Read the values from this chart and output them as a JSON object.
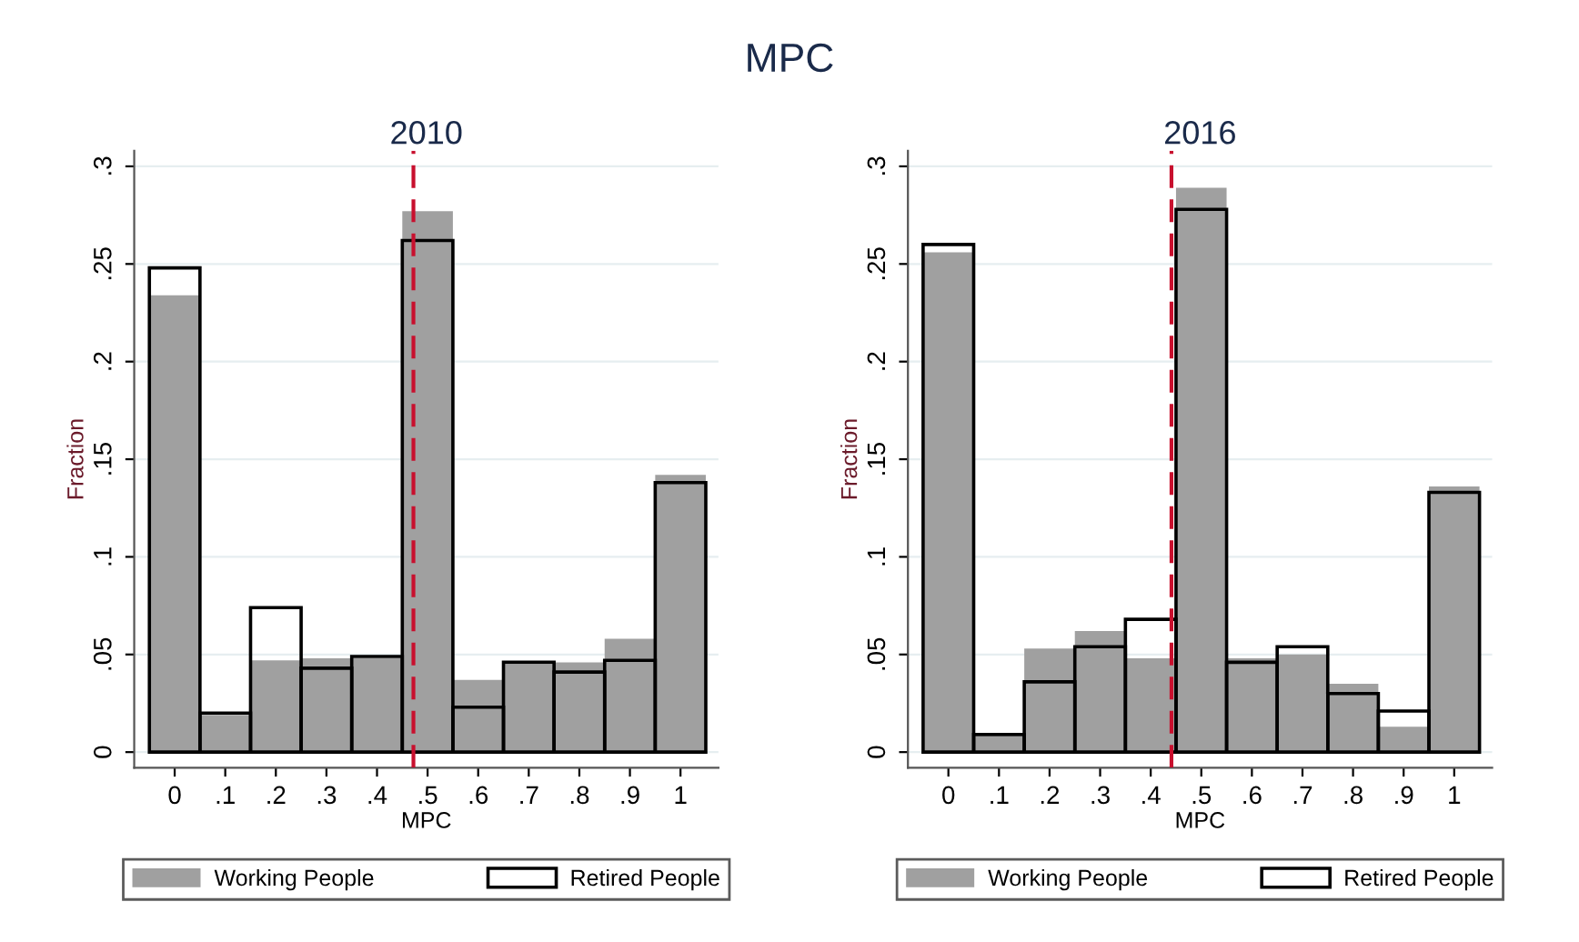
{
  "chart_data": [
    {
      "type": "histogram",
      "title": "2010",
      "xlabel": "MPC",
      "ylabel": "Fraction",
      "annotations": [
        "MPC"
      ],
      "bins": [
        -0.05,
        0.05,
        0.15,
        0.25,
        0.35,
        0.45,
        0.55,
        0.65,
        0.75,
        0.85,
        0.95,
        1.05
      ],
      "series": [
        {
          "name": "Working People",
          "color": "#a0a0a0",
          "values": [
            0.234,
            0.019,
            0.047,
            0.048,
            0.048,
            0.277,
            0.037,
            0.045,
            0.046,
            0.058,
            0.142
          ]
        },
        {
          "name": "Retired People",
          "color": "#000000",
          "values": [
            0.248,
            0.02,
            0.074,
            0.043,
            0.049,
            0.262,
            0.023,
            0.046,
            0.041,
            0.047,
            0.138
          ]
        }
      ],
      "xlim": [
        -0.08,
        1.075
      ],
      "ylim": [
        -0.008,
        0.308
      ],
      "xticks": [
        0,
        {
          "value": 0.1,
          "label": ".1"
        },
        {
          "value": 0.2,
          "label": ".2"
        },
        {
          "value": 0.3,
          "label": ".3"
        },
        {
          "value": 0.4,
          "label": ".4"
        },
        {
          "value": 0.5,
          "label": ".5"
        },
        {
          "value": 0.6,
          "label": ".6"
        },
        {
          "value": 0.7,
          "label": ".7"
        },
        {
          "value": 0.8,
          "label": ".8"
        },
        {
          "value": 0.9,
          "label": ".9"
        },
        1
      ],
      "yticks": [
        0,
        {
          "value": 0.05,
          "label": ".05"
        },
        {
          "value": 0.1,
          "label": ".1"
        },
        {
          "value": 0.15,
          "label": ".15"
        },
        {
          "value": 0.2,
          "label": ".2"
        },
        {
          "value": 0.25,
          "label": ".25"
        },
        {
          "value": 0.3,
          "label": ".3"
        }
      ],
      "ref_lines": [
        {
          "axis": "x",
          "value": 0.472,
          "color": "#c8102e",
          "line_style": "dashed"
        }
      ],
      "grid": "y",
      "legend": "bottom"
    },
    {
      "type": "histogram",
      "title": "2016",
      "xlabel": "MPC",
      "ylabel": "Fraction",
      "bins": [
        -0.05,
        0.05,
        0.15,
        0.25,
        0.35,
        0.45,
        0.55,
        0.65,
        0.75,
        0.85,
        0.95,
        1.05
      ],
      "series": [
        {
          "name": "Working People",
          "color": "#a0a0a0",
          "values": [
            0.256,
            0.008,
            0.053,
            0.062,
            0.048,
            0.289,
            0.048,
            0.05,
            0.035,
            0.013,
            0.136
          ]
        },
        {
          "name": "Retired People",
          "color": "#000000",
          "values": [
            0.26,
            0.009,
            0.036,
            0.054,
            0.068,
            0.278,
            0.046,
            0.054,
            0.03,
            0.021,
            0.133
          ]
        }
      ],
      "xlim": [
        -0.08,
        1.075
      ],
      "ylim": [
        -0.008,
        0.308
      ],
      "xticks": [
        0,
        {
          "value": 0.1,
          "label": ".1"
        },
        {
          "value": 0.2,
          "label": ".2"
        },
        {
          "value": 0.3,
          "label": ".3"
        },
        {
          "value": 0.4,
          "label": ".4"
        },
        {
          "value": 0.5,
          "label": ".5"
        },
        {
          "value": 0.6,
          "label": ".6"
        },
        {
          "value": 0.7,
          "label": ".7"
        },
        {
          "value": 0.8,
          "label": ".8"
        },
        {
          "value": 0.9,
          "label": ".9"
        },
        1
      ],
      "yticks": [
        0,
        {
          "value": 0.05,
          "label": ".05"
        },
        {
          "value": 0.1,
          "label": ".1"
        },
        {
          "value": 0.15,
          "label": ".15"
        },
        {
          "value": 0.2,
          "label": ".2"
        },
        {
          "value": 0.25,
          "label": ".25"
        },
        {
          "value": 0.3,
          "label": ".3"
        }
      ],
      "ref_lines": [
        {
          "axis": "x",
          "value": 0.441,
          "color": "#c8102e",
          "line_style": "dashed"
        }
      ],
      "grid": "y",
      "legend": "bottom"
    }
  ]
}
